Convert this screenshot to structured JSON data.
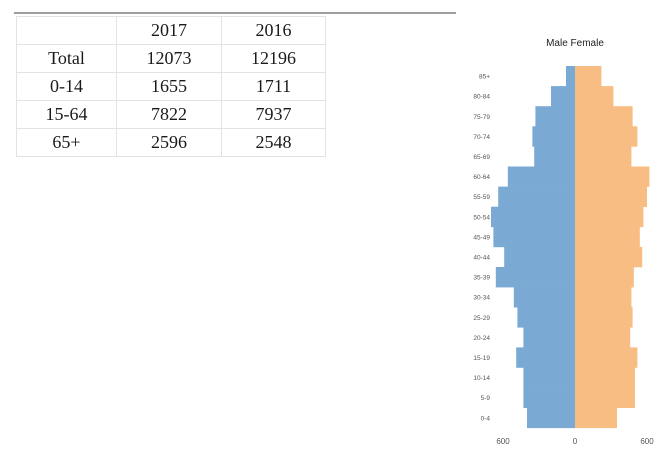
{
  "table": {
    "headers": [
      "",
      "2017",
      "2016"
    ],
    "rows": [
      {
        "label": "Total",
        "v2017": "12073",
        "v2016": "12196"
      },
      {
        "label": "0-14",
        "v2017": "1655",
        "v2016": "1711"
      },
      {
        "label": "15-64",
        "v2017": "7822",
        "v2016": "7937"
      },
      {
        "label": "65+",
        "v2017": "2596",
        "v2016": "2548"
      }
    ]
  },
  "chart_data": {
    "type": "bar",
    "orientation": "horizontal-pyramid",
    "title": "Male Female",
    "categories": [
      "85+",
      "80-84",
      "75-79",
      "70-74",
      "65-69",
      "60-64",
      "55-59",
      "50-54",
      "45-49",
      "40-44",
      "35-39",
      "30-34",
      "25-29",
      "20-24",
      "15-19",
      "10-14",
      "5-9",
      "0-4"
    ],
    "series": [
      {
        "name": "Male",
        "color": "#7aaad4",
        "values": [
          75,
          200,
          330,
          355,
          340,
          560,
          640,
          700,
          680,
          590,
          660,
          510,
          480,
          430,
          490,
          430,
          430,
          400
        ]
      },
      {
        "name": "Female",
        "color": "#f7bd82",
        "values": [
          220,
          320,
          480,
          520,
          470,
          620,
          600,
          570,
          540,
          560,
          490,
          470,
          480,
          460,
          520,
          500,
          500,
          350
        ]
      }
    ],
    "x_tick_labels": [
      "600",
      "0",
      "600"
    ],
    "xlim": [
      -800,
      800
    ],
    "grid": false
  }
}
